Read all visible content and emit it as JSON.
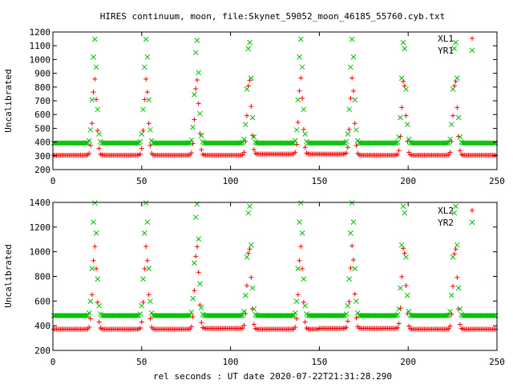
{
  "title": "HIRES continuum, moon, file:Skynet_59052_moon_46185_55760.cyb.txt",
  "xlabel": "rel seconds : UT date 2020-07-22T21:31:28.290",
  "colors": {
    "red": "#ff0000",
    "green": "#00c000",
    "axis": "#000000"
  },
  "chart_data": [
    {
      "type": "scatter",
      "ylabel": "Uncalibrated",
      "xlim": [
        0,
        250
      ],
      "ylim": [
        200,
        1200
      ],
      "xticks": [
        0,
        50,
        100,
        150,
        200,
        250
      ],
      "yticks": [
        200,
        300,
        400,
        500,
        600,
        700,
        800,
        900,
        1000,
        1100,
        1200
      ],
      "legend_position": "top-right",
      "peak_centers": [
        23.5,
        52.5,
        81,
        110.5,
        139.5,
        168.5,
        197.5,
        226.5
      ],
      "x_step": 0.8,
      "series": [
        {
          "name": "XL1",
          "marker": "plus",
          "color": "#ff0000",
          "baseline": 305,
          "peak": 860,
          "baseline_bumps": [
            [
              110,
              170,
              8
            ]
          ]
        },
        {
          "name": "YR1",
          "marker": "cross",
          "color": "#00c000",
          "baseline": 393,
          "peak": 1150,
          "baseline_bumps": []
        }
      ]
    },
    {
      "type": "scatter",
      "ylabel": "Uncalibrated",
      "xlim": [
        0,
        250
      ],
      "ylim": [
        200,
        1400
      ],
      "xticks": [
        0,
        50,
        100,
        150,
        200,
        250
      ],
      "yticks": [
        200,
        400,
        600,
        800,
        1000,
        1200,
        1400
      ],
      "legend_position": "top-right",
      "peak_centers": [
        23.5,
        52.5,
        81,
        110.5,
        139.5,
        168.5,
        197.5,
        226.5
      ],
      "x_step": 0.8,
      "series": [
        {
          "name": "XL2",
          "marker": "plus",
          "color": "#ff0000",
          "baseline": 372,
          "peak": 1045,
          "baseline_bumps": [
            [
              80,
              110,
              6
            ],
            [
              150,
              200,
              6
            ]
          ]
        },
        {
          "name": "YR2",
          "marker": "cross",
          "color": "#00c000",
          "baseline": 482,
          "peak": 1400,
          "baseline_bumps": []
        }
      ]
    }
  ]
}
